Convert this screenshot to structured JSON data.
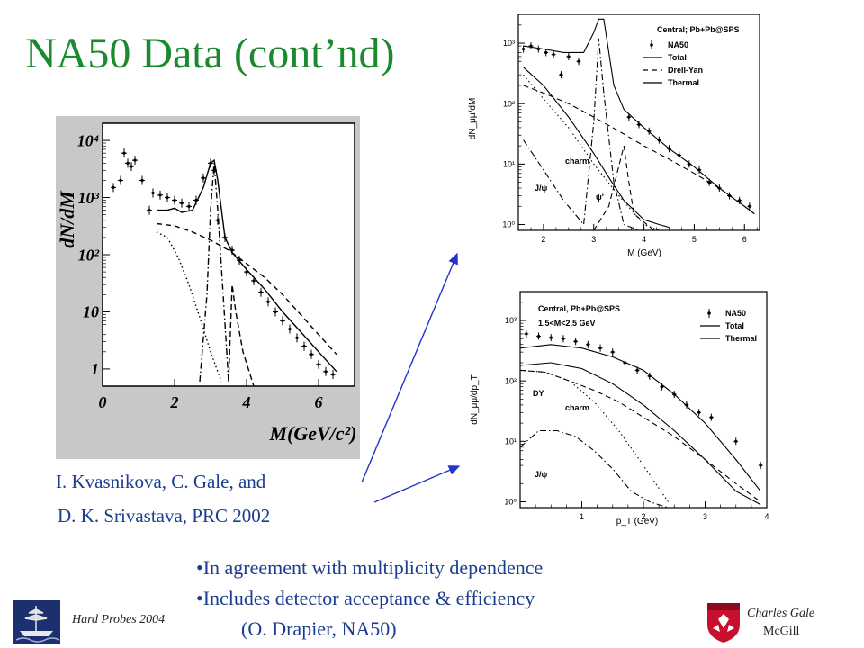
{
  "slide": {
    "title": "NA50 Data (cont’nd)",
    "reference": [
      "I. Kvasnikova, C. Gale, and",
      "D. K. Srivastava, PRC 2002"
    ],
    "bullets": [
      "•In agreement with multiplicity dependence",
      "•Includes detector acceptance & efficiency",
      "(O. Drapier, NA50)"
    ],
    "footer_left": "Hard Probes 2004",
    "footer_right": [
      "Charles Gale",
      "McGill"
    ],
    "colors": {
      "title": "#1b8a2f",
      "text": "#1a3d8f",
      "arrow": "#2233cc",
      "panel": "#c8c8c8",
      "mcgill_red": "#c8102e",
      "logo_blue": "#1c2f6e"
    },
    "icons": {
      "left": "ship-logo-icon",
      "right": "mcgill-shield-icon"
    }
  },
  "chart_data": [
    {
      "type": "line",
      "xlabel": "M(GeV/c²)",
      "ylabel": "dN/dM",
      "xlim": [
        0,
        7
      ],
      "ylim": [
        0.5,
        20000
      ],
      "yscale": "log",
      "xticks": [
        "0",
        "2",
        "4",
        "6"
      ],
      "yticks": [
        "1",
        "10",
        "10²",
        "10³",
        "10⁴"
      ],
      "series": [
        {
          "name": "",
          "style": "points",
          "x": [
            0.3,
            0.5,
            0.6,
            0.7,
            0.8,
            0.9,
            1.1,
            1.3,
            1.4,
            1.6,
            1.8,
            2.0,
            2.2,
            2.4,
            2.6,
            2.8,
            3.0,
            3.1,
            3.2,
            3.4,
            3.6,
            3.8,
            4.0,
            4.2,
            4.4,
            4.6,
            4.8,
            5.0,
            5.2,
            5.4,
            5.6,
            5.8,
            6.0,
            6.2,
            6.4
          ],
          "y": [
            1500,
            2000,
            6000,
            4000,
            3500,
            4500,
            2000,
            600,
            1200,
            1100,
            1000,
            900,
            800,
            700,
            900,
            2200,
            4000,
            3000,
            400,
            200,
            120,
            80,
            50,
            35,
            22,
            15,
            10,
            7,
            5,
            3.5,
            2.5,
            1.8,
            1.2,
            0.9,
            0.8
          ]
        },
        {
          "name": "",
          "style": "solid",
          "x": [
            1.5,
            1.8,
            2.0,
            2.2,
            2.5,
            2.8,
            3.0,
            3.1,
            3.2,
            3.4,
            3.6,
            4.0,
            4.5,
            5.0,
            5.5,
            6.0,
            6.5
          ],
          "y": [
            600,
            600,
            650,
            550,
            600,
            1500,
            4000,
            4500,
            2000,
            200,
            110,
            55,
            25,
            10,
            4.5,
            2,
            0.9
          ]
        },
        {
          "name": "",
          "style": "dashed",
          "x": [
            1.5,
            2.0,
            2.5,
            3.0,
            3.5,
            4.0,
            4.5,
            5.0,
            5.5,
            6.0,
            6.5
          ],
          "y": [
            350,
            320,
            250,
            180,
            120,
            70,
            40,
            20,
            9,
            4,
            1.8
          ]
        },
        {
          "name": "",
          "style": "dotted",
          "x": [
            1.5,
            1.8,
            2.1,
            2.4,
            2.7,
            3.0,
            3.3
          ],
          "y": [
            250,
            200,
            90,
            30,
            8,
            2,
            0.6
          ]
        },
        {
          "name": "",
          "style": "dashdot",
          "x": [
            2.7,
            2.9,
            3.0,
            3.1,
            3.2,
            3.35,
            3.5
          ],
          "y": [
            0.6,
            20,
            600,
            4000,
            600,
            20,
            0.6
          ]
        },
        {
          "name": "",
          "style": "dashed",
          "x": [
            3.5,
            3.6,
            3.7,
            3.9,
            4.2
          ],
          "y": [
            0.6,
            30,
            10,
            2,
            0.5
          ]
        }
      ]
    },
    {
      "type": "line",
      "title": "Central; Pb+Pb@SPS",
      "xlabel": "M (GeV)",
      "ylabel": "dN_μμ/dM",
      "xlim": [
        1.5,
        6.3
      ],
      "ylim": [
        0.8,
        3000
      ],
      "yscale": "log",
      "xticks": [
        "2",
        "3",
        "4",
        "5",
        "6"
      ],
      "yticks": [
        "10⁰",
        "10¹",
        "10²",
        "10³"
      ],
      "annotations": [
        "charm",
        "J/ψ",
        "ψ'"
      ],
      "series": [
        {
          "name": "NA50",
          "style": "points",
          "x": [
            1.6,
            1.75,
            1.9,
            2.05,
            2.2,
            2.35,
            2.5,
            2.7,
            3.7,
            3.9,
            4.1,
            4.3,
            4.5,
            4.7,
            4.9,
            5.1,
            5.3,
            5.5,
            5.7,
            5.9,
            6.1
          ],
          "y": [
            800,
            900,
            800,
            700,
            650,
            300,
            600,
            500,
            60,
            45,
            35,
            25,
            18,
            14,
            10,
            8,
            5,
            4,
            3,
            2.5,
            2
          ]
        },
        {
          "name": "Total",
          "style": "solid",
          "x": [
            1.6,
            2.0,
            2.4,
            2.8,
            3.0,
            3.1,
            3.2,
            3.4,
            3.6,
            4.0,
            4.5,
            5.0,
            5.5,
            6.0,
            6.2
          ],
          "y": [
            900,
            800,
            700,
            700,
            1500,
            2500,
            2500,
            200,
            80,
            40,
            18,
            9,
            4,
            2,
            1.5
          ]
        },
        {
          "name": "Drell-Yan",
          "style": "dashed",
          "x": [
            1.6,
            2.0,
            2.5,
            3.0,
            3.5,
            4.0,
            4.5,
            5.0,
            5.5,
            6.0,
            6.2
          ],
          "y": [
            200,
            150,
            100,
            60,
            35,
            20,
            12,
            7,
            4,
            2,
            1.5
          ]
        },
        {
          "name": "Thermal",
          "style": "solid",
          "x": [
            1.6,
            2.0,
            2.5,
            3.0,
            3.3,
            3.6,
            4.0,
            4.3,
            4.5
          ],
          "y": [
            400,
            200,
            60,
            15,
            6,
            2.5,
            1.2,
            1,
            0.9
          ]
        },
        {
          "name": "charm",
          "style": "dotted",
          "x": [
            1.6,
            2.0,
            2.5,
            3.0,
            3.5,
            4.0,
            4.3
          ],
          "y": [
            300,
            120,
            40,
            10,
            3,
            1,
            0.8
          ]
        },
        {
          "name": "J/ψ",
          "style": "dashdot",
          "x": [
            1.6,
            2.0,
            2.4,
            2.8,
            3.0,
            3.1,
            3.2,
            3.4,
            3.6,
            3.9
          ],
          "y": [
            25,
            8,
            2.5,
            1,
            50,
            1200,
            150,
            5,
            1,
            0.8
          ]
        },
        {
          "name": "ψ'",
          "style": "dashed",
          "x": [
            3.0,
            3.3,
            3.6,
            3.7,
            3.8,
            4.2
          ],
          "y": [
            0.8,
            2,
            20,
            5,
            1.5,
            0.8
          ]
        }
      ]
    },
    {
      "type": "line",
      "title": "Central, Pb+Pb@SPS",
      "subtitle": "1.5<M<2.5 GeV",
      "xlabel": "p_T (GeV)",
      "ylabel": "dN_μμ/dp_T",
      "xlim": [
        0,
        4
      ],
      "ylim": [
        0.8,
        3000
      ],
      "yscale": "log",
      "xticks": [
        "1",
        "2",
        "3",
        "4"
      ],
      "yticks": [
        "10⁰",
        "10¹",
        "10²",
        "10³"
      ],
      "annotations": [
        "DY",
        "charm",
        "J/ψ"
      ],
      "series": [
        {
          "name": "NA50",
          "style": "points",
          "x": [
            0.1,
            0.3,
            0.5,
            0.7,
            0.9,
            1.1,
            1.3,
            1.5,
            1.7,
            1.9,
            2.1,
            2.3,
            2.5,
            2.7,
            2.9,
            3.1,
            3.5,
            3.9
          ],
          "y": [
            600,
            550,
            520,
            500,
            450,
            400,
            350,
            300,
            200,
            150,
            120,
            80,
            60,
            40,
            30,
            25,
            10,
            4
          ]
        },
        {
          "name": "Total",
          "style": "solid",
          "x": [
            0.0,
            0.5,
            1.0,
            1.5,
            2.0,
            2.5,
            3.0,
            3.5,
            3.9
          ],
          "y": [
            350,
            400,
            350,
            250,
            150,
            60,
            20,
            5,
            1.5
          ]
        },
        {
          "name": "Thermal",
          "style": "solid",
          "x": [
            0.0,
            0.5,
            1.0,
            1.5,
            2.0,
            2.5,
            3.0,
            3.5,
            3.9
          ],
          "y": [
            180,
            200,
            160,
            90,
            40,
            15,
            5,
            1.5,
            0.9
          ]
        },
        {
          "name": "DY",
          "style": "dashed",
          "x": [
            0.0,
            0.4,
            0.8,
            1.2,
            1.6,
            2.0,
            2.5,
            3.0,
            3.5,
            3.9
          ],
          "y": [
            150,
            140,
            100,
            70,
            45,
            25,
            12,
            5,
            2,
            1
          ]
        },
        {
          "name": "charm",
          "style": "dotted",
          "x": [
            0.0,
            0.4,
            0.8,
            1.2,
            1.6,
            2.0,
            2.4
          ],
          "y": [
            150,
            140,
            100,
            45,
            15,
            4,
            1
          ]
        },
        {
          "name": "J/ψ",
          "style": "dashdot",
          "x": [
            0.0,
            0.3,
            0.6,
            0.9,
            1.2,
            1.5,
            1.8,
            2.1,
            2.4
          ],
          "y": [
            8,
            15,
            15,
            12,
            7,
            3.5,
            1.5,
            1,
            0.8
          ]
        }
      ]
    }
  ]
}
